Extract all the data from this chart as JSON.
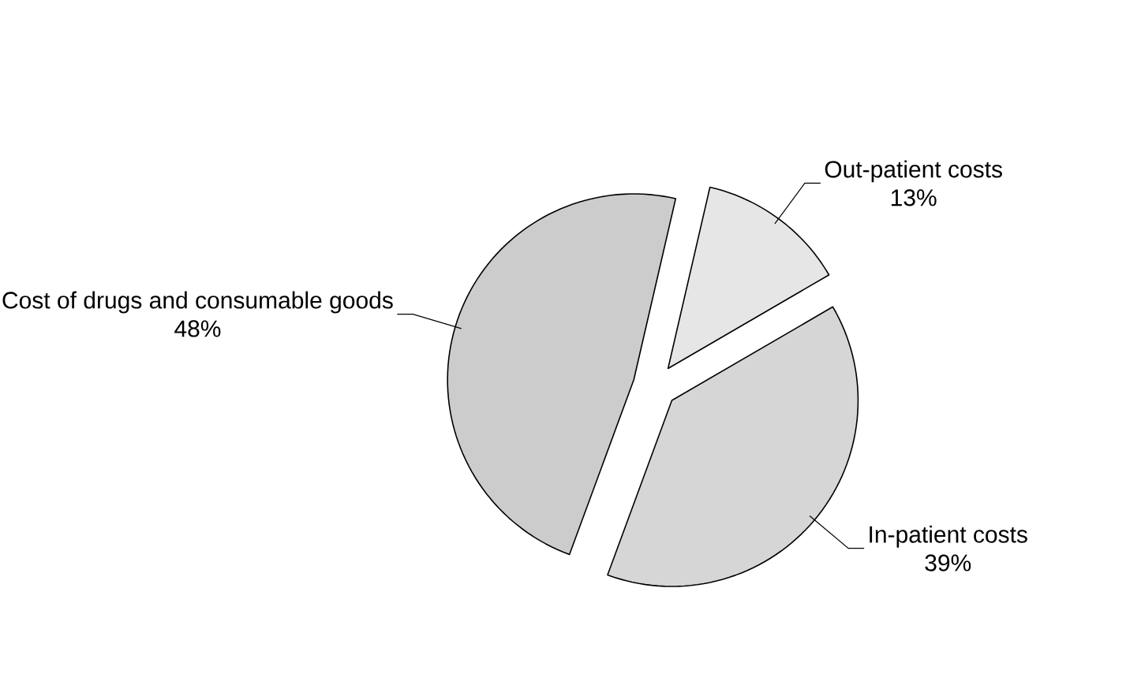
{
  "chart_data": {
    "type": "pie",
    "categories": [
      "Out-patient costs",
      "In-patient costs",
      "Cost of drugs and consumable goods"
    ],
    "values": [
      13,
      39,
      48
    ],
    "value_labels": [
      "13%",
      "39%",
      "48%"
    ],
    "colors": [
      "#e6e6e6",
      "#d6d6d6",
      "#cccccc"
    ]
  }
}
